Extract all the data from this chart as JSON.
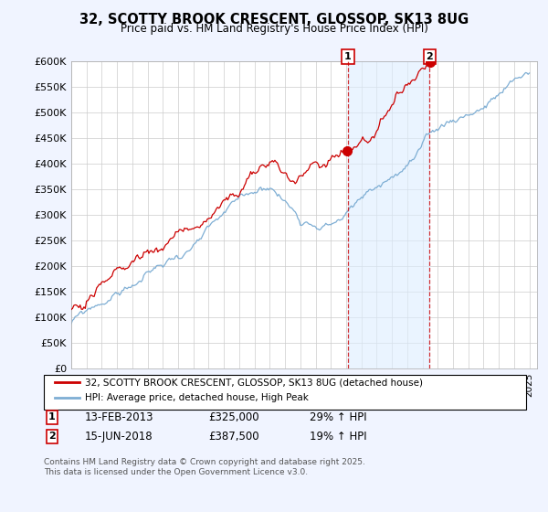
{
  "title": "32, SCOTTY BROOK CRESCENT, GLOSSOP, SK13 8UG",
  "subtitle": "Price paid vs. HM Land Registry's House Price Index (HPI)",
  "legend_line1": "32, SCOTTY BROOK CRESCENT, GLOSSOP, SK13 8UG (detached house)",
  "legend_line2": "HPI: Average price, detached house, High Peak",
  "ylim": [
    0,
    600000
  ],
  "yticks": [
    0,
    50000,
    100000,
    150000,
    200000,
    250000,
    300000,
    350000,
    400000,
    450000,
    500000,
    550000,
    600000
  ],
  "ytick_labels": [
    "£0",
    "£50K",
    "£100K",
    "£150K",
    "£200K",
    "£250K",
    "£300K",
    "£350K",
    "£400K",
    "£450K",
    "£500K",
    "£550K",
    "£600K"
  ],
  "line1_color": "#cc0000",
  "line2_color": "#7eaed4",
  "vline_color": "#cc0000",
  "annotation_box_color": "#cc0000",
  "fill_color": "#ddeeff",
  "footer": "Contains HM Land Registry data © Crown copyright and database right 2025.\nThis data is licensed under the Open Government Licence v3.0.",
  "sale1_date_num": 2013.12,
  "sale1_price": 325000,
  "sale2_date_num": 2018.46,
  "sale2_price": 387500,
  "background_color": "#f0f4ff",
  "plot_bg_color": "#ffffff"
}
